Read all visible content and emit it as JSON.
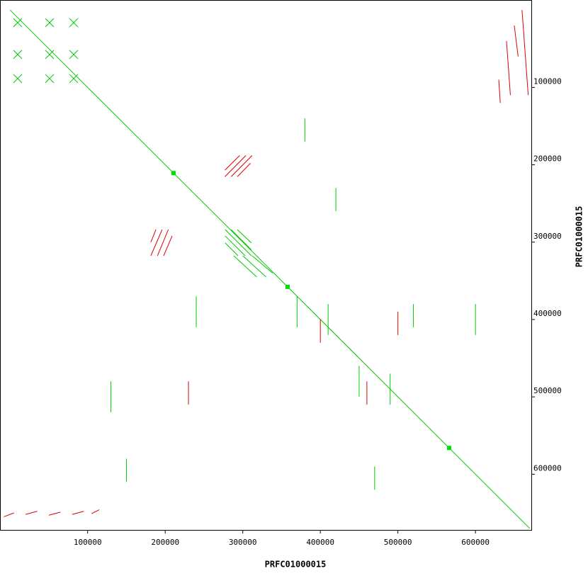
{
  "chart_data": {
    "type": "dotplot",
    "x_label": "PRFC01000015",
    "y_label": "PRFC01000015",
    "xlim": [
      -13000,
      672000
    ],
    "ylim": [
      -13000,
      672000
    ],
    "xticks": [
      100000,
      200000,
      300000,
      400000,
      500000,
      600000
    ],
    "yticks": [
      100000,
      200000,
      300000,
      400000,
      500000,
      600000
    ],
    "series": [
      {
        "color": "#00c800",
        "segments": [
          [
            0,
            0,
            670000,
            670000
          ],
          [
            4300,
            10800,
            15300,
            21800
          ],
          [
            4300,
            21800,
            15300,
            10800
          ],
          [
            4300,
            51900,
            15300,
            62900
          ],
          [
            4300,
            62900,
            15300,
            51900
          ],
          [
            4300,
            83000,
            15300,
            94000
          ],
          [
            4300,
            94000,
            15300,
            83000
          ],
          [
            45400,
            10800,
            56400,
            21800
          ],
          [
            45400,
            21800,
            56400,
            10800
          ],
          [
            45400,
            51900,
            56400,
            62900
          ],
          [
            45400,
            62900,
            56400,
            51900
          ],
          [
            45400,
            83000,
            56400,
            94000
          ],
          [
            45400,
            94000,
            56400,
            83000
          ],
          [
            76500,
            10800,
            87500,
            21800
          ],
          [
            76500,
            21800,
            87500,
            10800
          ],
          [
            76500,
            51900,
            87500,
            62900
          ],
          [
            76500,
            62900,
            87500,
            51900
          ],
          [
            76500,
            83000,
            87500,
            94000
          ],
          [
            76500,
            94000,
            87500,
            83000
          ],
          [
            277300,
            283800,
            311100,
            317600
          ],
          [
            285000,
            283800,
            311100,
            310000
          ],
          [
            277300,
            292000,
            303000,
            317600
          ],
          [
            293000,
            283800,
            311100,
            301000
          ],
          [
            277300,
            301000,
            294000,
            317600
          ],
          [
            288300,
            317600,
            318000,
            345000
          ],
          [
            300000,
            317600,
            330000,
            345000
          ],
          [
            312000,
            317600,
            338500,
            340000
          ],
          [
            370000,
            370000,
            370000,
            410000
          ],
          [
            410000,
            380000,
            410000,
            420000
          ],
          [
            450000,
            460000,
            450000,
            500000
          ],
          [
            490000,
            470000,
            490000,
            510000
          ],
          [
            520000,
            380000,
            520000,
            410000
          ],
          [
            130000,
            480000,
            130000,
            520000
          ],
          [
            240000,
            370000,
            240000,
            410000
          ],
          [
            380000,
            140000,
            380000,
            170000
          ],
          [
            470000,
            590000,
            470000,
            620000
          ],
          [
            600000,
            380000,
            600000,
            420000
          ],
          [
            150000,
            580000,
            150000,
            610000
          ],
          [
            420000,
            230000,
            420000,
            260000
          ]
        ]
      },
      {
        "color": "#e00000",
        "segments": [
          [
            277000,
            215400,
            304000,
            188000
          ],
          [
            285000,
            215400,
            312000,
            188000
          ],
          [
            293000,
            215400,
            310000,
            198000
          ],
          [
            277000,
            207000,
            296000,
            188000
          ],
          [
            181500,
            317600,
            196000,
            283800
          ],
          [
            190000,
            317600,
            204000,
            283800
          ],
          [
            198000,
            317600,
            208900,
            292000
          ],
          [
            181500,
            300000,
            188000,
            283800
          ],
          [
            660000,
            0,
            668000,
            110000
          ],
          [
            650000,
            20000,
            655000,
            60000
          ],
          [
            640000,
            40000,
            645000,
            110000
          ],
          [
            630000,
            90000,
            632000,
            120000
          ],
          [
            -8000,
            655000,
            5000,
            650000
          ],
          [
            20000,
            652000,
            35000,
            648000
          ],
          [
            50000,
            653000,
            65000,
            649000
          ],
          [
            80000,
            652000,
            95000,
            648000
          ],
          [
            105000,
            651000,
            115000,
            646000
          ],
          [
            400000,
            400000,
            400000,
            430000
          ],
          [
            460000,
            480000,
            460000,
            510000
          ],
          [
            500000,
            390000,
            500000,
            420000
          ],
          [
            230000,
            480000,
            230000,
            510000
          ]
        ]
      }
    ],
    "markers": {
      "color": "#00dd00",
      "x": [
        210700,
        357800,
        566000
      ],
      "y": [
        210700,
        357800,
        566000
      ]
    }
  }
}
